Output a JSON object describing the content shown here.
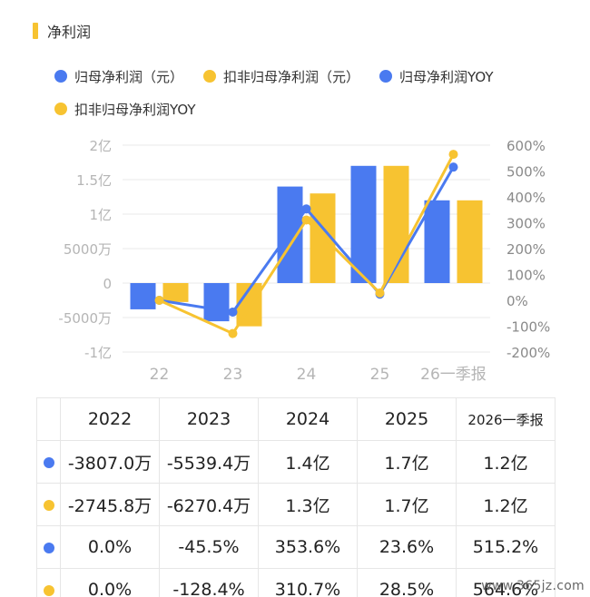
{
  "section": {
    "title": "净利润"
  },
  "colors": {
    "blue": "#4a7af0",
    "yellow": "#f7c331",
    "grid": "#e8e8e8",
    "axis_text": "#b5b5b5"
  },
  "legend": [
    {
      "label": "归母净利润（元）",
      "color": "#4a7af0"
    },
    {
      "label": "扣非归母净利润（元）",
      "color": "#f7c331"
    },
    {
      "label": "归母净利润YOY",
      "color": "#4a7af0"
    },
    {
      "label": "扣非归母净利润YOY",
      "color": "#f7c331"
    }
  ],
  "chart_data": {
    "type": "bar",
    "categories": [
      "22",
      "23",
      "24",
      "25",
      "26一季报"
    ],
    "left_axis": {
      "ticks": [
        "2亿",
        "1.5亿",
        "1亿",
        "5000万",
        "0",
        "-5000万",
        "-1亿"
      ],
      "range": [
        -10000,
        20000
      ],
      "unit": "万"
    },
    "right_axis": {
      "ticks": [
        "600%",
        "500%",
        "400%",
        "300%",
        "200%",
        "100%",
        "0%",
        "-100%",
        "-200%"
      ],
      "range": [
        -200,
        600
      ]
    },
    "series": [
      {
        "name": "归母净利润（元）",
        "kind": "bar",
        "color": "#4a7af0",
        "values": [
          -3807.0,
          -5539.4,
          14000,
          17000,
          12000
        ]
      },
      {
        "name": "扣非归母净利润（元）",
        "kind": "bar",
        "color": "#f7c331",
        "values": [
          -2745.8,
          -6270.4,
          13000,
          17000,
          12000
        ]
      },
      {
        "name": "归母净利润YOY",
        "kind": "line",
        "color": "#4a7af0",
        "values": [
          0.0,
          -45.5,
          353.6,
          23.6,
          515.2
        ]
      },
      {
        "name": "扣非归母净利润YOY",
        "kind": "line",
        "color": "#f7c331",
        "values": [
          0.0,
          -128.4,
          310.7,
          28.5,
          564.6
        ]
      }
    ],
    "grid": true
  },
  "table": {
    "headers": [
      "2022",
      "2023",
      "2024",
      "2025",
      "2026一季报"
    ],
    "rows": [
      {
        "color": "#4a7af0",
        "cells": [
          "-3807.0万",
          "-5539.4万",
          "1.4亿",
          "1.7亿",
          "1.2亿"
        ]
      },
      {
        "color": "#f7c331",
        "cells": [
          "-2745.8万",
          "-6270.4万",
          "1.3亿",
          "1.7亿",
          "1.2亿"
        ]
      },
      {
        "color": "#4a7af0",
        "cells": [
          "0.0%",
          "-45.5%",
          "353.6%",
          "23.6%",
          "515.2%"
        ]
      },
      {
        "color": "#f7c331",
        "cells": [
          "0.0%",
          "-128.4%",
          "310.7%",
          "28.5%",
          "564.6%"
        ]
      }
    ]
  },
  "watermark": "www.365jz.com"
}
